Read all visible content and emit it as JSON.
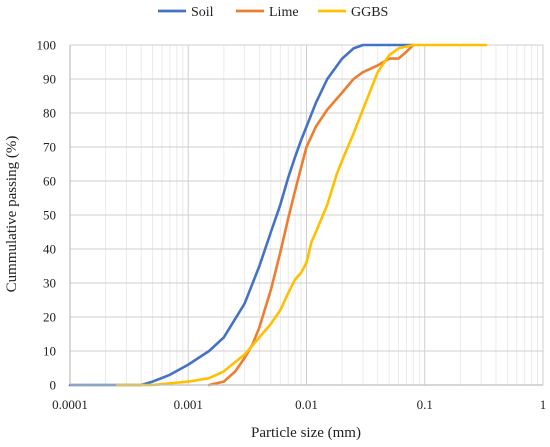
{
  "chart_data": {
    "type": "line",
    "title": "",
    "xlabel": "Particle size (mm)",
    "ylabel": "Cummulative passing (%)",
    "x_scale": "log",
    "xlim": [
      0.0001,
      1
    ],
    "ylim": [
      0,
      100
    ],
    "x_ticks": [
      0.0001,
      0.001,
      0.01,
      0.1,
      1
    ],
    "x_tick_labels": [
      "0.0001",
      "0.001",
      "0.01",
      "0.1",
      "1"
    ],
    "y_ticks": [
      0,
      10,
      20,
      30,
      40,
      50,
      60,
      70,
      80,
      90,
      100
    ],
    "y_tick_labels": [
      "0",
      "10",
      "20",
      "30",
      "40",
      "50",
      "60",
      "70",
      "80",
      "90",
      "100"
    ],
    "grid": true,
    "legend_position": "top",
    "series": [
      {
        "name": "Soil",
        "color": "#4472C4",
        "x": [
          0.0001,
          0.0004,
          0.0005,
          0.0007,
          0.001,
          0.0015,
          0.002,
          0.003,
          0.004,
          0.005,
          0.006,
          0.007,
          0.008,
          0.009,
          0.01,
          0.012,
          0.015,
          0.02,
          0.025,
          0.03,
          0.035,
          0.04,
          0.05,
          0.06,
          0.08
        ],
        "y": [
          0,
          0,
          1,
          3,
          6,
          10,
          14,
          24,
          35,
          45,
          53,
          61,
          67,
          72,
          76,
          83,
          90,
          96,
          99,
          100,
          100,
          100,
          100,
          100,
          100
        ]
      },
      {
        "name": "Lime",
        "color": "#ED7D31",
        "x": [
          0.0015,
          0.002,
          0.0025,
          0.003,
          0.0035,
          0.004,
          0.005,
          0.006,
          0.007,
          0.008,
          0.009,
          0.01,
          0.012,
          0.015,
          0.02,
          0.025,
          0.03,
          0.04,
          0.05,
          0.06,
          0.07,
          0.08
        ],
        "y": [
          0,
          1,
          4,
          8,
          12,
          17,
          28,
          39,
          49,
          57,
          64,
          70,
          76,
          81,
          86,
          90,
          92,
          94,
          96,
          96,
          98,
          100
        ]
      },
      {
        "name": "GGBS",
        "color": "#FFC000",
        "x": [
          0.00025,
          0.0005,
          0.001,
          0.0015,
          0.002,
          0.003,
          0.004,
          0.005,
          0.006,
          0.007,
          0.008,
          0.009,
          0.01,
          0.011,
          0.012,
          0.015,
          0.018,
          0.02,
          0.025,
          0.03,
          0.04,
          0.05,
          0.06,
          0.08,
          0.1,
          0.2,
          0.33
        ],
        "y": [
          0,
          0,
          1,
          2,
          4,
          9,
          14,
          18,
          22,
          27,
          31,
          33,
          36,
          42,
          45,
          53,
          62,
          66,
          74,
          81,
          92,
          97,
          99,
          100,
          100,
          100,
          100
        ]
      }
    ]
  }
}
